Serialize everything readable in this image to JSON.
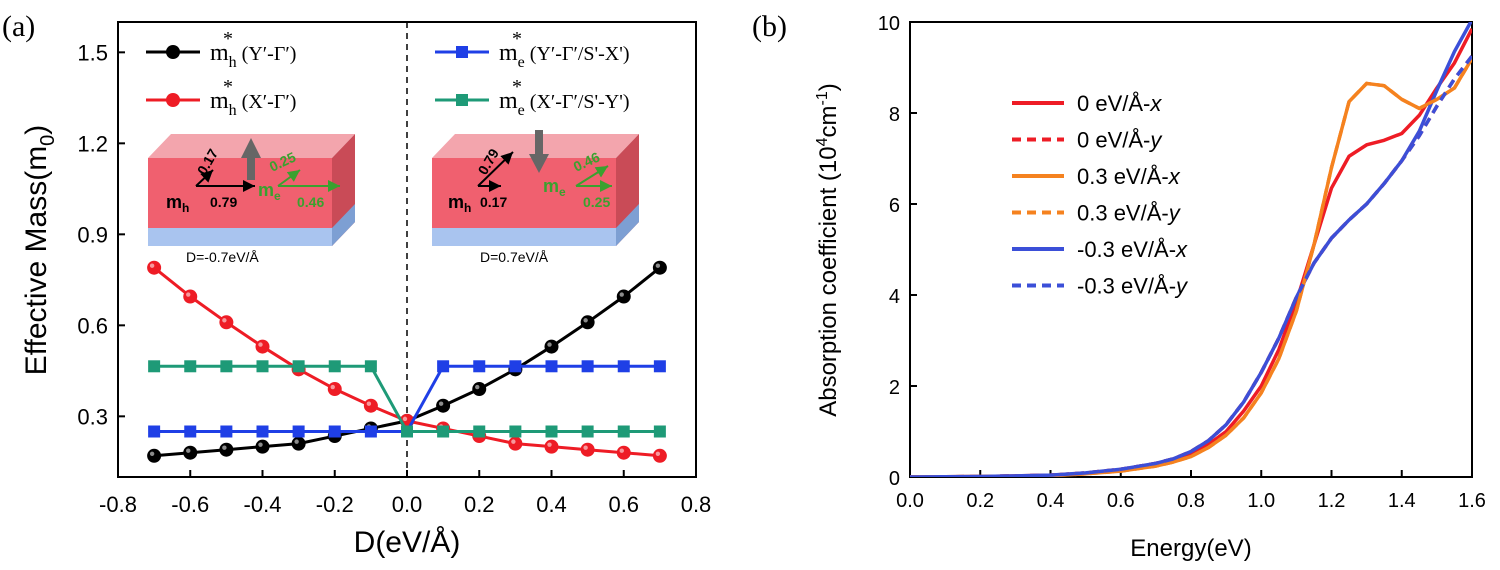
{
  "chart_data": [
    {
      "type": "line",
      "panel_label": "(a)",
      "xlabel": "D(eV/Å)",
      "ylabel_main": "Effective Mass(m",
      "ylabel_sub": "0",
      "ylabel_close": ")",
      "xlim": [
        -0.8,
        0.8
      ],
      "ylim": [
        0.1,
        1.6
      ],
      "xticks": [
        -0.8,
        -0.6,
        -0.4,
        -0.2,
        0.0,
        0.2,
        0.4,
        0.6,
        0.8
      ],
      "xtick_labels": [
        "-0.8",
        "-0.6",
        "-0.4",
        "-0.2",
        "0.0",
        "0.2",
        "0.4",
        "0.6",
        "0.8"
      ],
      "yticks": [
        0.3,
        0.6,
        0.9,
        1.2,
        1.5
      ],
      "ytick_labels": [
        "0.3",
        "0.6",
        "0.9",
        "1.2",
        "1.5"
      ],
      "x": [
        -0.7,
        -0.6,
        -0.5,
        -0.4,
        -0.3,
        -0.2,
        -0.1,
        0.0,
        0.1,
        0.2,
        0.3,
        0.4,
        0.5,
        0.6,
        0.7
      ],
      "series": [
        {
          "name": "mh* (Y'-Γ')",
          "legend_base": "m",
          "legend_sub": "h",
          "legend_rest": " (Y′-Γ′)",
          "color": "#000000",
          "marker": "circle",
          "values": [
            0.17,
            0.18,
            0.19,
            0.2,
            0.21,
            0.235,
            0.26,
            0.285,
            0.335,
            0.39,
            0.455,
            0.53,
            0.61,
            0.695,
            0.79
          ]
        },
        {
          "name": "mh* (X'-Γ')",
          "legend_base": "m",
          "legend_sub": "h",
          "legend_rest": " (X′-Γ′)",
          "color": "#ee1c25",
          "marker": "circle",
          "values": [
            0.79,
            0.695,
            0.61,
            0.53,
            0.455,
            0.39,
            0.335,
            0.285,
            0.26,
            0.235,
            0.21,
            0.2,
            0.19,
            0.18,
            0.17
          ]
        },
        {
          "name": "me* (Y'-Γ'/S'-X')",
          "legend_base": "m",
          "legend_sub": "e",
          "legend_rest": " (Y′-Γ′/S'-X')",
          "color": "#1f3fe6",
          "marker": "square",
          "values": [
            0.25,
            0.25,
            0.25,
            0.25,
            0.25,
            0.25,
            0.25,
            0.25,
            0.465,
            0.465,
            0.465,
            0.465,
            0.465,
            0.465,
            0.465
          ]
        },
        {
          "name": "me* (X'-Γ'/S'-Y')",
          "legend_base": "m",
          "legend_sub": "e",
          "legend_rest": " (X′-Γ′/S'-Y')",
          "color": "#1e9a77",
          "marker": "square",
          "values": [
            0.465,
            0.465,
            0.465,
            0.465,
            0.465,
            0.465,
            0.465,
            0.25,
            0.25,
            0.25,
            0.25,
            0.25,
            0.25,
            0.25,
            0.25
          ]
        }
      ],
      "insets": [
        {
          "caption": "D=-0.7eV/Å",
          "mh_a": "0.17",
          "mh_b": "0.79",
          "me_a": "0.25",
          "me_b": "0.46",
          "field": "up"
        },
        {
          "caption": "D=0.7eV/Å",
          "mh_a": "0.79",
          "mh_b": "0.17",
          "me_a": "0.46",
          "me_b": "0.25",
          "field": "down"
        }
      ],
      "inset_labels": {
        "mh_base": "m",
        "mh_sub": "h",
        "me_base": "m",
        "me_sub": "e"
      },
      "annotation": "dashed vertical line at D = 0"
    },
    {
      "type": "line",
      "panel_label": "(b)",
      "xlabel": "Energy(eV)",
      "ylabel_pre": "Absorption coefficient (10",
      "ylabel_sup": "4",
      "ylabel_post": "cm",
      "ylabel_sup2": "-1",
      "ylabel_close": ")",
      "xlim": [
        0.0,
        1.6
      ],
      "ylim": [
        0,
        10
      ],
      "xticks": [
        0.0,
        0.2,
        0.4,
        0.6,
        0.8,
        1.0,
        1.2,
        1.4,
        1.6
      ],
      "xtick_labels": [
        "0.0",
        "0.2",
        "0.4",
        "0.6",
        "0.8",
        "1.0",
        "1.2",
        "1.4",
        "1.6"
      ],
      "yticks": [
        0,
        2,
        4,
        6,
        8,
        10
      ],
      "ytick_labels": [
        "0",
        "2",
        "4",
        "6",
        "8",
        "10"
      ],
      "series": [
        {
          "name": "0 eV/Å-x",
          "legend_main": "0 eV/Å-",
          "legend_italic": "x",
          "color": "#ee1c25",
          "dash": "solid",
          "x": [
            0,
            0.2,
            0.4,
            0.5,
            0.6,
            0.7,
            0.75,
            0.8,
            0.85,
            0.9,
            0.95,
            1.0,
            1.05,
            1.1,
            1.15,
            1.2,
            1.25,
            1.3,
            1.35,
            1.4,
            1.45,
            1.5,
            1.55,
            1.6
          ],
          "y": [
            0,
            0.01,
            0.04,
            0.08,
            0.15,
            0.27,
            0.36,
            0.5,
            0.72,
            1.0,
            1.45,
            2.0,
            2.8,
            3.85,
            5.1,
            6.35,
            7.05,
            7.3,
            7.4,
            7.55,
            7.95,
            8.55,
            9.1,
            9.85
          ]
        },
        {
          "name": "0 eV/Å-y",
          "legend_main": "0 eV/Å-",
          "legend_italic": "y",
          "color": "#ee1c25",
          "dash": "dashed",
          "x": [
            0,
            0.2,
            0.4,
            0.5,
            0.6,
            0.7,
            0.75,
            0.8,
            0.85,
            0.9,
            0.95,
            1.0,
            1.05,
            1.1,
            1.15,
            1.2,
            1.25,
            1.3,
            1.35,
            1.4,
            1.45,
            1.5,
            1.55,
            1.6
          ],
          "y": [
            0,
            0.01,
            0.04,
            0.09,
            0.17,
            0.3,
            0.4,
            0.56,
            0.8,
            1.15,
            1.65,
            2.3,
            3.05,
            3.95,
            4.7,
            5.25,
            5.65,
            6.0,
            6.45,
            6.95,
            7.5,
            8.15,
            8.75,
            9.25
          ]
        },
        {
          "name": "0.3 eV/Å-x",
          "legend_main": "0.3 eV/Å-",
          "legend_italic": "x",
          "color": "#f5821f",
          "dash": "solid",
          "x": [
            0,
            0.2,
            0.4,
            0.5,
            0.6,
            0.7,
            0.75,
            0.8,
            0.85,
            0.9,
            0.95,
            1.0,
            1.05,
            1.1,
            1.15,
            1.2,
            1.25,
            1.3,
            1.35,
            1.4,
            1.45,
            1.5,
            1.55,
            1.6
          ],
          "y": [
            0,
            0.01,
            0.03,
            0.07,
            0.13,
            0.24,
            0.33,
            0.45,
            0.65,
            0.92,
            1.3,
            1.85,
            2.6,
            3.65,
            5.1,
            6.8,
            8.25,
            8.65,
            8.6,
            8.3,
            8.1,
            8.3,
            8.55,
            9.2
          ]
        },
        {
          "name": "0.3 eV/Å-y",
          "legend_main": "0.3 eV/Å-",
          "legend_italic": "y",
          "color": "#f5821f",
          "dash": "dashed",
          "x": [
            0,
            0.2,
            0.4,
            0.5,
            0.6,
            0.7,
            0.75,
            0.8,
            0.85,
            0.9,
            0.95,
            1.0,
            1.05,
            1.1,
            1.15,
            1.2,
            1.25,
            1.3,
            1.35,
            1.4,
            1.45,
            1.5,
            1.55,
            1.6
          ],
          "y": [
            0,
            0.01,
            0.03,
            0.07,
            0.13,
            0.24,
            0.33,
            0.45,
            0.65,
            0.92,
            1.3,
            1.85,
            2.6,
            3.65,
            5.1,
            6.8,
            8.25,
            8.65,
            8.6,
            8.3,
            8.1,
            8.3,
            8.55,
            9.2
          ]
        },
        {
          "name": "-0.3 eV/Å-x",
          "legend_main": "-0.3 eV/Å-",
          "legend_italic": "x",
          "color": "#3b4fd8",
          "dash": "solid",
          "x": [
            0,
            0.2,
            0.4,
            0.5,
            0.6,
            0.7,
            0.75,
            0.8,
            0.85,
            0.9,
            0.95,
            1.0,
            1.05,
            1.1,
            1.15,
            1.2,
            1.25,
            1.3,
            1.35,
            1.4,
            1.45,
            1.5,
            1.55,
            1.6
          ],
          "y": [
            0,
            0.01,
            0.04,
            0.09,
            0.17,
            0.3,
            0.4,
            0.56,
            0.8,
            1.15,
            1.65,
            2.3,
            3.05,
            3.95,
            4.7,
            5.25,
            5.65,
            6.0,
            6.45,
            6.95,
            7.6,
            8.5,
            9.35,
            10.05
          ]
        },
        {
          "name": "-0.3 eV/Å-y",
          "legend_main": "-0.3 eV/Å-",
          "legend_italic": "y",
          "color": "#3b4fd8",
          "dash": "dashed",
          "x": [
            0,
            0.2,
            0.4,
            0.5,
            0.6,
            0.7,
            0.75,
            0.8,
            0.85,
            0.9,
            0.95,
            1.0,
            1.05,
            1.1,
            1.15,
            1.2,
            1.25,
            1.3,
            1.35,
            1.4,
            1.45,
            1.5,
            1.55,
            1.6
          ],
          "y": [
            0,
            0.01,
            0.04,
            0.09,
            0.17,
            0.3,
            0.4,
            0.56,
            0.8,
            1.15,
            1.65,
            2.3,
            3.05,
            3.95,
            4.7,
            5.25,
            5.65,
            6.0,
            6.45,
            6.95,
            7.5,
            8.15,
            8.75,
            9.25
          ]
        }
      ]
    }
  ]
}
